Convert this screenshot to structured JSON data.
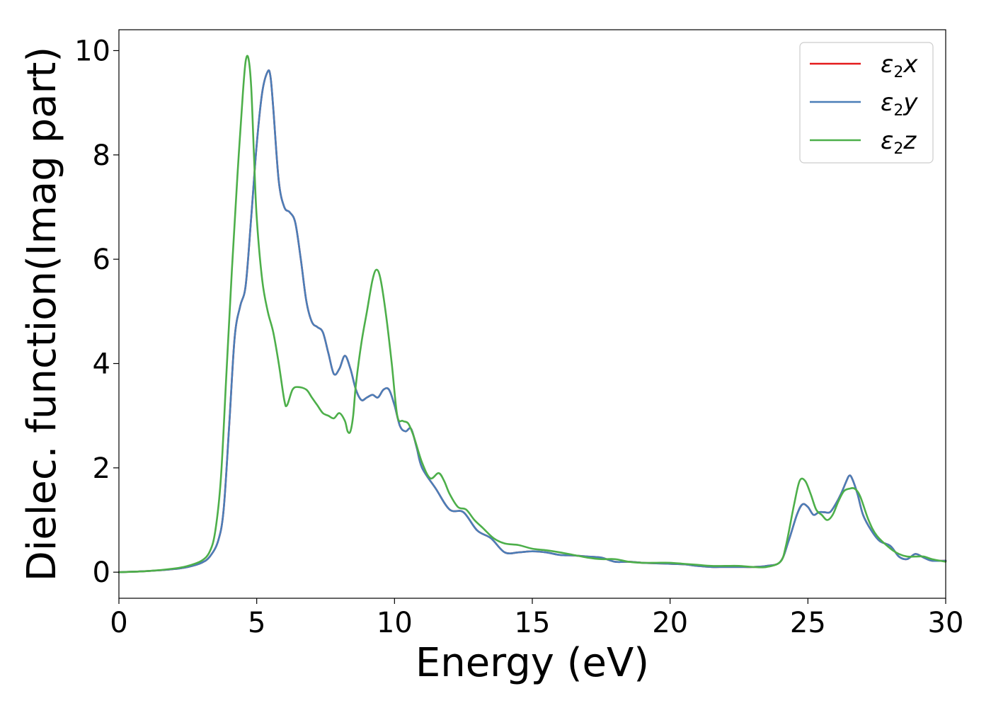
{
  "chart_data": {
    "type": "line",
    "title": "",
    "xlabel": "Energy (eV)",
    "ylabel": "Dielec. function(Imag part)",
    "xlim": [
      0,
      30
    ],
    "ylim": [
      -0.5,
      10.4
    ],
    "xticks": [
      0,
      5,
      10,
      15,
      20,
      25,
      30
    ],
    "yticks": [
      0,
      2,
      4,
      6,
      8,
      10
    ],
    "grid": false,
    "legend_position": "upper right",
    "series": [
      {
        "name_base": "ε",
        "name_sub": "2",
        "name_var": "x",
        "color": "#e41a1c",
        "x": [
          0,
          1,
          2,
          2.5,
          3,
          3.3,
          3.6,
          3.8,
          4.0,
          4.2,
          4.4,
          4.6,
          4.8,
          5.0,
          5.2,
          5.4,
          5.5,
          5.6,
          5.8,
          6.0,
          6.2,
          6.4,
          6.6,
          6.8,
          7.0,
          7.2,
          7.4,
          7.6,
          7.8,
          8.0,
          8.2,
          8.4,
          8.6,
          8.8,
          9.0,
          9.2,
          9.4,
          9.6,
          9.8,
          10.0,
          10.2,
          10.4,
          10.6,
          10.8,
          11.0,
          11.5,
          12.0,
          12.5,
          13.0,
          13.5,
          14.0,
          14.5,
          15.0,
          15.5,
          16.0,
          16.5,
          17.0,
          17.5,
          18.0,
          18.5,
          19.0,
          19.5,
          20.0,
          20.5,
          21.0,
          21.5,
          22.0,
          22.5,
          23.0,
          23.5,
          24.0,
          24.3,
          24.6,
          24.8,
          25.0,
          25.2,
          25.4,
          25.6,
          25.8,
          26.0,
          26.2,
          26.4,
          26.5,
          26.6,
          26.8,
          27.0,
          27.3,
          27.6,
          28.0,
          28.3,
          28.6,
          28.9,
          29.2,
          29.5,
          30.0
        ],
        "y": [
          0,
          0.02,
          0.06,
          0.1,
          0.18,
          0.3,
          0.6,
          1.2,
          2.8,
          4.5,
          5.1,
          5.5,
          6.8,
          8.2,
          9.2,
          9.6,
          9.5,
          8.9,
          7.5,
          7.0,
          6.9,
          6.7,
          6.0,
          5.2,
          4.8,
          4.7,
          4.6,
          4.2,
          3.8,
          3.9,
          4.15,
          3.9,
          3.5,
          3.3,
          3.35,
          3.4,
          3.35,
          3.5,
          3.5,
          3.2,
          2.8,
          2.7,
          2.75,
          2.4,
          2.0,
          1.6,
          1.2,
          1.15,
          0.8,
          0.65,
          0.38,
          0.38,
          0.4,
          0.38,
          0.33,
          0.32,
          0.3,
          0.28,
          0.2,
          0.2,
          0.18,
          0.17,
          0.16,
          0.15,
          0.12,
          0.1,
          0.1,
          0.1,
          0.1,
          0.12,
          0.2,
          0.6,
          1.1,
          1.3,
          1.25,
          1.1,
          1.15,
          1.15,
          1.15,
          1.3,
          1.5,
          1.75,
          1.85,
          1.8,
          1.5,
          1.1,
          0.8,
          0.6,
          0.5,
          0.3,
          0.25,
          0.35,
          0.28,
          0.22,
          0.22
        ]
      },
      {
        "name_base": "ε",
        "name_sub": "2",
        "name_var": "y",
        "color": "#4a7eb8",
        "x": [
          0,
          1,
          2,
          2.5,
          3,
          3.3,
          3.6,
          3.8,
          4.0,
          4.2,
          4.4,
          4.6,
          4.8,
          5.0,
          5.2,
          5.4,
          5.5,
          5.6,
          5.8,
          6.0,
          6.2,
          6.4,
          6.6,
          6.8,
          7.0,
          7.2,
          7.4,
          7.6,
          7.8,
          8.0,
          8.2,
          8.4,
          8.6,
          8.8,
          9.0,
          9.2,
          9.4,
          9.6,
          9.8,
          10.0,
          10.2,
          10.4,
          10.6,
          10.8,
          11.0,
          11.5,
          12.0,
          12.5,
          13.0,
          13.5,
          14.0,
          14.5,
          15.0,
          15.5,
          16.0,
          16.5,
          17.0,
          17.5,
          18.0,
          18.5,
          19.0,
          19.5,
          20.0,
          20.5,
          21.0,
          21.5,
          22.0,
          22.5,
          23.0,
          23.5,
          24.0,
          24.3,
          24.6,
          24.8,
          25.0,
          25.2,
          25.4,
          25.6,
          25.8,
          26.0,
          26.2,
          26.4,
          26.5,
          26.6,
          26.8,
          27.0,
          27.3,
          27.6,
          28.0,
          28.3,
          28.6,
          28.9,
          29.2,
          29.5,
          30.0
        ],
        "y": [
          0,
          0.02,
          0.06,
          0.1,
          0.18,
          0.3,
          0.6,
          1.2,
          2.8,
          4.5,
          5.1,
          5.5,
          6.8,
          8.2,
          9.2,
          9.6,
          9.5,
          8.9,
          7.5,
          7.0,
          6.9,
          6.7,
          6.0,
          5.2,
          4.8,
          4.7,
          4.6,
          4.2,
          3.8,
          3.9,
          4.15,
          3.9,
          3.5,
          3.3,
          3.35,
          3.4,
          3.35,
          3.5,
          3.5,
          3.2,
          2.8,
          2.7,
          2.75,
          2.4,
          2.0,
          1.6,
          1.2,
          1.15,
          0.8,
          0.65,
          0.38,
          0.38,
          0.4,
          0.38,
          0.33,
          0.32,
          0.3,
          0.28,
          0.2,
          0.2,
          0.18,
          0.17,
          0.16,
          0.15,
          0.12,
          0.1,
          0.1,
          0.1,
          0.1,
          0.12,
          0.2,
          0.6,
          1.1,
          1.3,
          1.25,
          1.1,
          1.15,
          1.15,
          1.15,
          1.3,
          1.5,
          1.75,
          1.85,
          1.8,
          1.5,
          1.1,
          0.8,
          0.6,
          0.5,
          0.3,
          0.25,
          0.35,
          0.28,
          0.22,
          0.22
        ]
      },
      {
        "name_base": "ε",
        "name_sub": "2",
        "name_var": "z",
        "color": "#4daf4a",
        "x": [
          0,
          1,
          2,
          2.5,
          3,
          3.3,
          3.5,
          3.7,
          3.9,
          4.1,
          4.3,
          4.5,
          4.6,
          4.7,
          4.8,
          4.9,
          5.0,
          5.2,
          5.4,
          5.6,
          5.8,
          6.0,
          6.1,
          6.3,
          6.5,
          6.8,
          7.0,
          7.2,
          7.4,
          7.6,
          7.8,
          8.0,
          8.2,
          8.3,
          8.4,
          8.5,
          8.6,
          8.8,
          9.0,
          9.2,
          9.35,
          9.5,
          9.7,
          9.9,
          10.1,
          10.3,
          10.5,
          10.7,
          11.0,
          11.3,
          11.6,
          11.8,
          12.0,
          12.3,
          12.6,
          12.9,
          13.2,
          13.6,
          14.0,
          14.5,
          15.0,
          15.5,
          16.0,
          16.5,
          17.0,
          17.5,
          18.0,
          18.5,
          19.0,
          19.5,
          20.0,
          20.5,
          21.0,
          21.5,
          22.0,
          22.5,
          23.0,
          23.5,
          24.0,
          24.2,
          24.5,
          24.7,
          24.9,
          25.1,
          25.3,
          25.5,
          25.7,
          25.9,
          26.1,
          26.3,
          26.5,
          26.7,
          26.9,
          27.2,
          27.5,
          28.0,
          28.3,
          28.6,
          28.9,
          29.2,
          29.5,
          30.0
        ],
        "y": [
          0,
          0.02,
          0.07,
          0.12,
          0.22,
          0.4,
          0.8,
          1.8,
          3.8,
          5.8,
          7.6,
          9.2,
          9.8,
          9.85,
          9.3,
          8.0,
          6.8,
          5.6,
          5.0,
          4.6,
          4.0,
          3.3,
          3.2,
          3.5,
          3.55,
          3.5,
          3.35,
          3.2,
          3.05,
          3.0,
          2.95,
          3.05,
          2.9,
          2.7,
          2.7,
          3.0,
          3.6,
          4.4,
          5.0,
          5.6,
          5.8,
          5.6,
          4.9,
          4.0,
          3.0,
          2.9,
          2.85,
          2.6,
          2.1,
          1.8,
          1.9,
          1.75,
          1.5,
          1.25,
          1.2,
          1.0,
          0.85,
          0.65,
          0.55,
          0.52,
          0.45,
          0.42,
          0.38,
          0.33,
          0.28,
          0.25,
          0.25,
          0.2,
          0.18,
          0.18,
          0.18,
          0.16,
          0.14,
          0.12,
          0.12,
          0.12,
          0.1,
          0.1,
          0.2,
          0.5,
          1.3,
          1.75,
          1.75,
          1.5,
          1.2,
          1.1,
          1.0,
          1.1,
          1.35,
          1.55,
          1.6,
          1.6,
          1.45,
          1.0,
          0.7,
          0.45,
          0.35,
          0.3,
          0.3,
          0.3,
          0.25,
          0.2
        ]
      }
    ]
  }
}
